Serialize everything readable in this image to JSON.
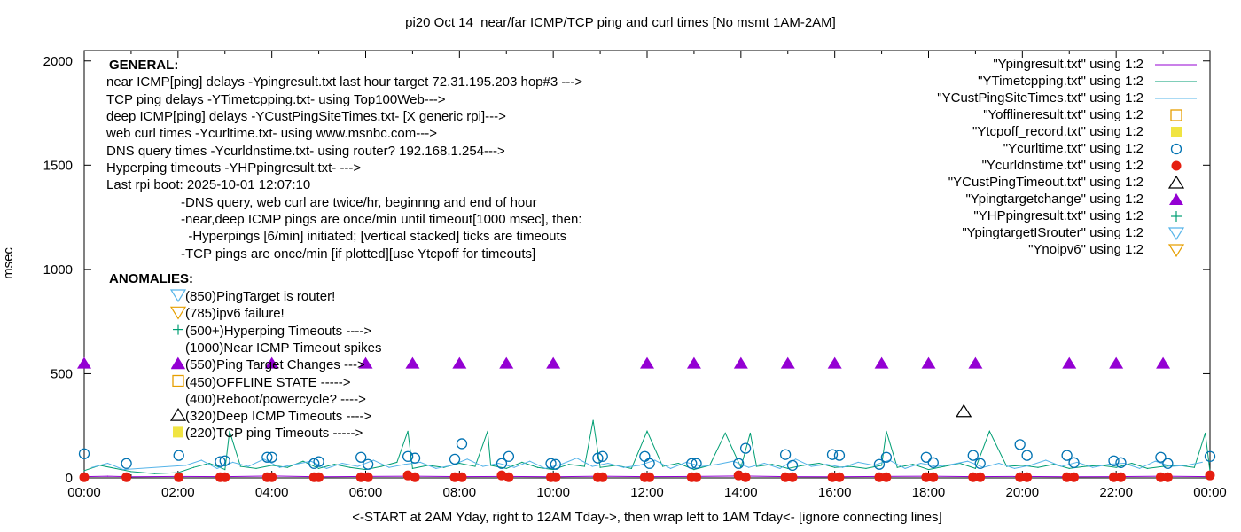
{
  "chart_data": {
    "type": "line",
    "title": "pi20 Oct 14  near/far ICMP/TCP ping and curl times [No msmt 1AM-2AM]",
    "xlabel": "<-START at 2AM Yday, right to 12AM Tday->, then wrap left to 1AM Tday<- [ignore connecting lines]",
    "ylabel": "msec",
    "xlim": [
      "00:00",
      "24:00"
    ],
    "ylim": [
      0,
      2050
    ],
    "x_ticks": [
      "00:00",
      "02:00",
      "04:00",
      "06:00",
      "08:00",
      "10:00",
      "12:00",
      "14:00",
      "16:00",
      "18:00",
      "20:00",
      "22:00",
      "00:00"
    ],
    "y_ticks": [
      0,
      500,
      1000,
      1500,
      2000
    ],
    "grid": false,
    "legend_placement": "top-right",
    "series": [
      {
        "name": "\"Ypingresult.txt\" using 1:2",
        "style": "line",
        "color": "#9400d3",
        "x": [
          "00:00",
          "00:30",
          "01:00",
          "02:00",
          "03:00",
          "04:00",
          "05:00",
          "06:00",
          "07:00",
          "08:00",
          "09:00",
          "10:00",
          "11:00",
          "12:00",
          "13:00",
          "14:00",
          "15:00",
          "16:00",
          "17:00",
          "18:00",
          "19:00",
          "20:00",
          "21:00",
          "22:00",
          "23:00",
          "24:00"
        ],
        "y": [
          6,
          8,
          5,
          7,
          6,
          9,
          5,
          7,
          8,
          6,
          7,
          5,
          8,
          6,
          7,
          9,
          6,
          5,
          7,
          8,
          6,
          7,
          5,
          6,
          8,
          6
        ]
      },
      {
        "name": "\"YTimetcpping.txt\" using 1:2",
        "style": "line",
        "color": "#009e73",
        "x": [
          "00:00",
          "00:20",
          "00:40",
          "01:00",
          "01:30",
          "02:00",
          "02:20",
          "02:40",
          "03:00",
          "03:06",
          "03:20",
          "03:40",
          "04:00",
          "04:20",
          "04:40",
          "05:00",
          "05:20",
          "05:40",
          "06:00",
          "06:20",
          "06:40",
          "06:54",
          "07:00",
          "07:20",
          "07:40",
          "08:00",
          "08:20",
          "08:36",
          "08:40",
          "09:00",
          "09:20",
          "09:40",
          "10:00",
          "10:20",
          "10:40",
          "10:51",
          "11:00",
          "11:20",
          "11:40",
          "12:00",
          "12:20",
          "12:40",
          "13:00",
          "13:20",
          "13:40",
          "14:00",
          "14:12",
          "14:20",
          "14:40",
          "15:00",
          "15:20",
          "15:40",
          "16:00",
          "16:20",
          "16:40",
          "17:00",
          "17:06",
          "17:20",
          "17:40",
          "18:00",
          "18:20",
          "18:40",
          "19:00",
          "19:18",
          "19:40",
          "20:00",
          "20:20",
          "20:40",
          "21:00",
          "21:20",
          "21:40",
          "22:00",
          "22:20",
          "22:40",
          "23:00",
          "23:20",
          "23:40",
          "23:54",
          "24:00"
        ],
        "y": [
          35,
          60,
          45,
          30,
          20,
          25,
          50,
          70,
          40,
          224,
          55,
          45,
          60,
          50,
          80,
          45,
          65,
          50,
          40,
          55,
          75,
          224,
          45,
          60,
          50,
          70,
          55,
          224,
          60,
          45,
          75,
          50,
          40,
          65,
          55,
          276,
          50,
          60,
          45,
          224,
          55,
          70,
          40,
          60,
          215,
          50,
          215,
          55,
          65,
          45,
          60,
          70,
          50,
          55,
          45,
          60,
          224,
          50,
          65,
          40,
          55,
          70,
          45,
          224,
          55,
          60,
          50,
          65,
          45,
          55,
          60,
          50,
          70,
          45,
          55,
          60,
          50,
          215,
          30
        ]
      },
      {
        "name": "\"YCustPingSiteTimes.txt\" using 1:2",
        "style": "line",
        "color": "#56b4e9",
        "x": [
          "00:10",
          "00:30",
          "00:50",
          "02:10",
          "02:30",
          "02:50",
          "03:10",
          "03:30",
          "03:50",
          "04:10",
          "04:30",
          "04:50",
          "05:10",
          "05:30",
          "05:50",
          "06:10",
          "06:30",
          "06:50",
          "07:10",
          "07:30",
          "07:50",
          "08:10",
          "08:30",
          "08:50",
          "09:10",
          "09:30",
          "09:50",
          "10:10",
          "10:30",
          "10:50",
          "11:10",
          "11:30",
          "11:50",
          "12:10",
          "12:30",
          "12:50",
          "13:10",
          "13:30",
          "13:50",
          "14:10",
          "14:30",
          "14:50",
          "15:10",
          "15:30",
          "15:50",
          "16:10",
          "16:30",
          "16:50",
          "17:10",
          "17:30",
          "17:50",
          "18:10",
          "18:30",
          "18:50",
          "19:10",
          "19:30",
          "19:50",
          "20:10",
          "20:30",
          "20:50",
          "21:10",
          "21:30",
          "21:50",
          "22:10",
          "22:30",
          "22:50",
          "23:10",
          "23:30",
          "23:50"
        ],
        "y": [
          50,
          70,
          40,
          60,
          85,
          45,
          75,
          55,
          90,
          50,
          65,
          80,
          45,
          70,
          55,
          85,
          50,
          65,
          75,
          45,
          60,
          90,
          55,
          70,
          50,
          80,
          45,
          65,
          95,
          55,
          70,
          50,
          60,
          85,
          45,
          75,
          55,
          65,
          80,
          50,
          70,
          45,
          90,
          55,
          65,
          50,
          75,
          60,
          85,
          45,
          70,
          55,
          65,
          80,
          50,
          70,
          45,
          60,
          85,
          55,
          75,
          50,
          65,
          70,
          45,
          80,
          55,
          60,
          75
        ]
      },
      {
        "name": "\"Yofflineresult.txt\" using 1:2",
        "style": "points",
        "marker": "open-square",
        "color": "#e69f00",
        "x": [],
        "y": []
      },
      {
        "name": "\"Ytcpoff_record.txt\" using 1:2",
        "style": "points",
        "marker": "filled-square",
        "color": "#f0e442",
        "x": [],
        "y": []
      },
      {
        "name": "\"Ycurltime.txt\" using 1:2",
        "style": "points",
        "marker": "open-circle",
        "color": "#0072b2",
        "x": [
          "00:00",
          "00:54",
          "02:01",
          "02:54",
          "03:00",
          "03:54",
          "04:00",
          "04:54",
          "05:00",
          "05:54",
          "06:03",
          "06:54",
          "07:03",
          "07:54",
          "08:03",
          "08:54",
          "09:03",
          "09:57",
          "10:03",
          "10:57",
          "11:03",
          "11:57",
          "12:03",
          "12:57",
          "13:03",
          "13:57",
          "14:06",
          "14:57",
          "15:06",
          "15:57",
          "16:06",
          "16:57",
          "17:06",
          "17:57",
          "18:06",
          "18:57",
          "19:06",
          "19:57",
          "20:06",
          "20:57",
          "21:06",
          "21:57",
          "22:06",
          "22:57",
          "23:06",
          "24:00"
        ],
        "y": [
          116,
          69,
          108,
          78,
          82,
          99,
          99,
          69,
          78,
          99,
          65,
          103,
          95,
          90,
          164,
          69,
          103,
          69,
          65,
          95,
          103,
          103,
          69,
          69,
          69,
          69,
          142,
          112,
          60,
          112,
          108,
          65,
          99,
          99,
          73,
          108,
          69,
          160,
          108,
          108,
          73,
          82,
          73,
          99,
          69,
          103
        ]
      },
      {
        "name": "\"Ycurldnstime.txt\" using 1:2",
        "style": "points",
        "marker": "filled-circle",
        "color": "#e51e10",
        "x": [
          "00:00",
          "00:54",
          "02:01",
          "02:54",
          "03:00",
          "03:54",
          "04:00",
          "04:54",
          "05:00",
          "05:54",
          "06:03",
          "06:54",
          "07:03",
          "07:54",
          "08:03",
          "08:54",
          "09:03",
          "09:57",
          "10:03",
          "10:57",
          "11:03",
          "11:57",
          "12:03",
          "12:57",
          "13:03",
          "13:57",
          "14:06",
          "14:57",
          "15:06",
          "15:57",
          "16:06",
          "16:57",
          "17:06",
          "17:57",
          "18:06",
          "18:57",
          "19:06",
          "19:57",
          "20:06",
          "20:57",
          "21:06",
          "21:57",
          "22:06",
          "22:57",
          "23:06",
          "24:00"
        ],
        "y": [
          3,
          3,
          3,
          3,
          3,
          3,
          3,
          3,
          3,
          3,
          3,
          12,
          3,
          3,
          3,
          12,
          3,
          3,
          3,
          3,
          3,
          3,
          3,
          3,
          3,
          12,
          3,
          3,
          3,
          3,
          3,
          3,
          3,
          3,
          3,
          3,
          3,
          3,
          3,
          3,
          3,
          3,
          3,
          3,
          3,
          12
        ]
      },
      {
        "name": "\"YCustPingTimeout.txt\" using 1:2",
        "style": "points",
        "marker": "open-triangle-up",
        "color": "#000000",
        "x": [
          "18:45"
        ],
        "y": [
          320
        ]
      },
      {
        "name": "\"Ypingtargetchange\" using 1:2",
        "style": "points",
        "marker": "filled-triangle-up",
        "color": "#9400d3",
        "x": [
          "00:00",
          "02:00",
          "04:00",
          "06:00",
          "07:00",
          "08:00",
          "09:00",
          "10:00",
          "12:00",
          "13:00",
          "14:00",
          "15:00",
          "16:00",
          "17:00",
          "18:00",
          "19:00",
          "21:00",
          "22:00",
          "23:00"
        ],
        "y": [
          550,
          550,
          550,
          550,
          550,
          550,
          550,
          550,
          550,
          550,
          550,
          550,
          550,
          550,
          550,
          550,
          550,
          550,
          550
        ]
      },
      {
        "name": "\"YHPpingresult.txt\" using 1:2",
        "style": "points",
        "marker": "plus",
        "color": "#009e73",
        "x": [],
        "y": []
      },
      {
        "name": "\"YpingtargetISrouter\" using 1:2",
        "style": "points",
        "marker": "open-triangle-down",
        "color": "#56b4e9",
        "x": [],
        "y": []
      },
      {
        "name": "\"Ynoipv6\" using 1:2",
        "style": "points",
        "marker": "open-triangle-down",
        "color": "#e69f00",
        "x": [],
        "y": []
      }
    ],
    "annotations": {
      "general_heading": "GENERAL:",
      "general_lines": [
        "near ICMP[ping] delays -Ypingresult.txt last hour target 72.31.195.203 hop#3 --->",
        "TCP ping delays -YTimetcpping.txt- using Top100Web--->",
        "deep ICMP[ping] delays -YCustPingSiteTimes.txt- [X generic rpi]--->",
        "web curl times -Ycurltime.txt- using www.msnbc.com--->",
        "DNS query times -Ycurldnstime.txt- using router? 192.168.1.254--->",
        "Hyperping timeouts -YHPpingresult.txt- --->",
        "Last rpi boot: 2025-10-01 12:07:10"
      ],
      "notes": [
        "-DNS query, web curl are twice/hr, beginnng and end of hour",
        "-near,deep ICMP pings are once/min until timeout[1000 msec], then:",
        "  -Hyperpings [6/min] initiated; [vertical stacked] ticks are timeouts",
        "-TCP pings are once/min [if plotted][use Ytcpoff for timeouts]"
      ],
      "anomalies_heading": "ANOMALIES:",
      "anomalies": [
        {
          "text": "(850)PingTarget is router!",
          "marker": "open-triangle-down",
          "color": "#56b4e9"
        },
        {
          "text": "(785)ipv6 failure!",
          "marker": "open-triangle-down",
          "color": "#e69f00"
        },
        {
          "text": "(500+)Hyperping Timeouts ---->",
          "marker": "plus",
          "color": "#009e73"
        },
        {
          "text": "(1000)Near ICMP Timeout spikes",
          "marker": "none",
          "color": ""
        },
        {
          "text": "(550)Ping Target Changes --->",
          "marker": "filled-triangle-up",
          "color": "#9400d3"
        },
        {
          "text": "(450)OFFLINE STATE ----->",
          "marker": "open-square",
          "color": "#e69f00"
        },
        {
          "text": "(400)Reboot/powercycle? ---->",
          "marker": "none",
          "color": ""
        },
        {
          "text": "(320)Deep ICMP Timeouts ---->",
          "marker": "open-triangle-up",
          "color": "#000000"
        },
        {
          "text": "(220)TCP ping Timeouts ----->",
          "marker": "filled-square",
          "color": "#f0e442"
        }
      ]
    }
  }
}
